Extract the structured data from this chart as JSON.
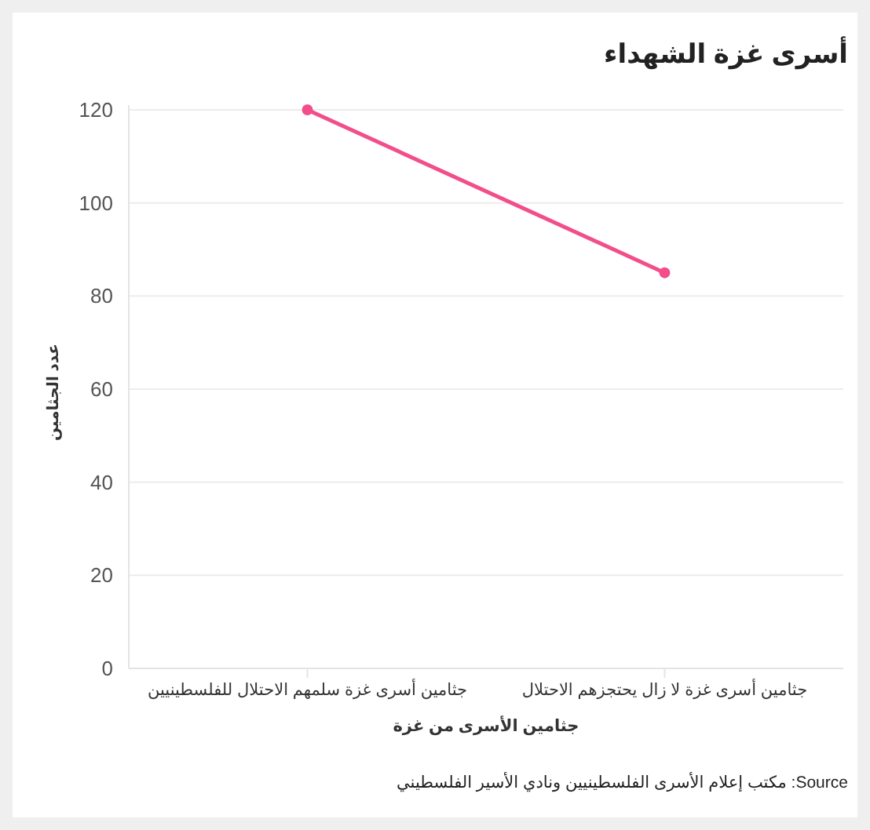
{
  "chart_data": {
    "type": "line",
    "title": "أسرى غزة الشهداء",
    "xlabel": "جثامين الأسرى من غزة",
    "ylabel": "عدد الجثامين",
    "categories": [
      "جثامين أسرى غزة سلمهم الاحتلال للفلسطينيين",
      "جثامين أسرى غزة لا زال يحتجزهم الاحتلال"
    ],
    "series": [
      {
        "color": "#f24e8a",
        "values": [
          120,
          85
        ]
      }
    ],
    "ylim": [
      0,
      120
    ],
    "yticks": [
      0,
      20,
      40,
      60,
      80,
      100,
      120
    ],
    "grid": "y",
    "marker": "circle",
    "annotations": [
      "Source: مكتب إعلام الأسرى الفلسطينيين ونادي الأسير الفلسطيني"
    ]
  }
}
